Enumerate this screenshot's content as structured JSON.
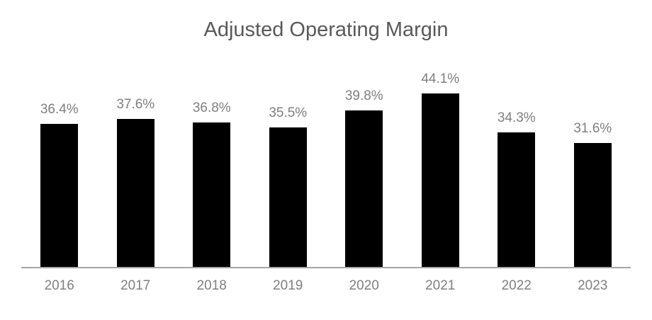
{
  "chart_data": {
    "type": "bar",
    "title": "Adjusted Operating Margin",
    "categories": [
      "2016",
      "2017",
      "2018",
      "2019",
      "2020",
      "2021",
      "2022",
      "2023"
    ],
    "values": [
      36.4,
      37.6,
      36.8,
      35.5,
      39.8,
      44.1,
      34.3,
      31.6
    ],
    "data_labels": [
      "36.4%",
      "37.6%",
      "36.8%",
      "35.5%",
      "39.8%",
      "44.1%",
      "34.3%",
      "31.6%"
    ],
    "xlabel": "",
    "ylabel": "",
    "ylim": [
      0,
      50
    ],
    "y_axis_visible": false,
    "gridlines": false,
    "legend": "none",
    "bar_color": "#000000",
    "label_color": "#7f7f7f",
    "title_color": "#595959",
    "axis_line_color": "#a6a6a6"
  }
}
